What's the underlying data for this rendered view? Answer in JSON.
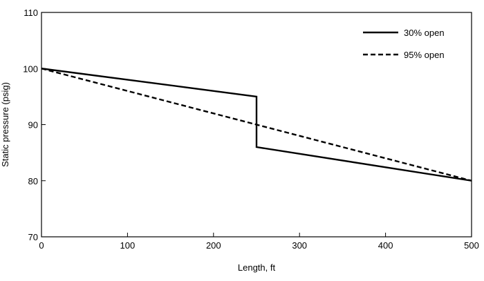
{
  "chart_data": {
    "type": "line",
    "title": "",
    "xlabel": "Length, ft",
    "ylabel": "Static pressure (psig)",
    "xlim": [
      0,
      500
    ],
    "ylim": [
      70,
      110
    ],
    "xticks": [
      0,
      100,
      200,
      300,
      400,
      500
    ],
    "yticks": [
      70,
      80,
      90,
      100,
      110
    ],
    "grid": false,
    "legend_position": "top-right",
    "series": [
      {
        "name": "30% open",
        "style": "solid",
        "color": "#000000",
        "points": [
          [
            0,
            100
          ],
          [
            250,
            95
          ],
          [
            250,
            86
          ],
          [
            500,
            80
          ]
        ]
      },
      {
        "name": "95% open",
        "style": "dashed",
        "color": "#000000",
        "points": [
          [
            0,
            100
          ],
          [
            500,
            80
          ]
        ]
      }
    ]
  }
}
